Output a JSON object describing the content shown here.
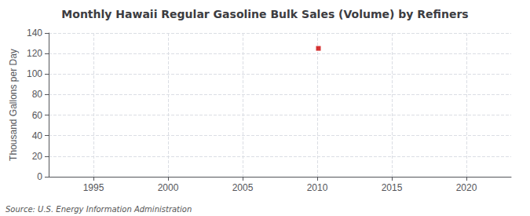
{
  "chart_data": {
    "type": "scatter",
    "title": "Monthly Hawaii Regular Gasoline Bulk Sales (Volume) by Refiners",
    "ylabel": "Thousand Gallons per Day",
    "annotation": "Source: U.S. Energy Information Administration",
    "x": [
      2010.08
    ],
    "values": [
      125.0
    ],
    "color": "#cc0000",
    "marker": "square",
    "xlim": [
      1992,
      2023
    ],
    "xticks": [
      1995,
      2000,
      2005,
      2010,
      2015,
      2020
    ],
    "ylim": [
      0,
      140
    ],
    "yticks": [
      0,
      20,
      40,
      60,
      80,
      100,
      120,
      140
    ],
    "grid": true
  }
}
